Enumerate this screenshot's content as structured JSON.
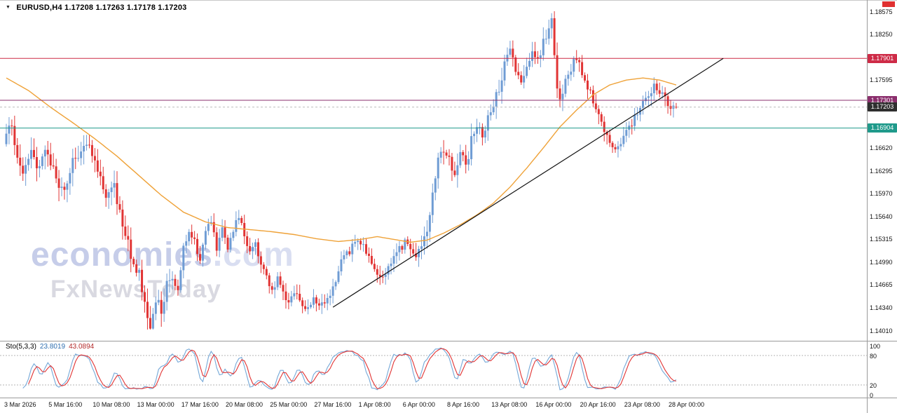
{
  "header": {
    "symbol": "EURUSD,H4",
    "ohlc_text": "1.17208 1.17263 1.17178 1.17203"
  },
  "watermark": {
    "brand": "economies",
    "brand_suffix": ".com",
    "tagline": "FxNewsToday"
  },
  "indicator": {
    "name": "Sto(5,3,3)",
    "value_main": "23.8019",
    "value_signal": "43.0894",
    "axis": [
      {
        "label": "100",
        "value": 100
      },
      {
        "label": "80",
        "value": 80
      },
      {
        "label": "20",
        "value": 20
      },
      {
        "label": "0",
        "value": 0
      }
    ]
  },
  "price_axis": {
    "ticks": [
      {
        "label": "1.18575",
        "price": 1.18575
      },
      {
        "label": "1.18250",
        "price": 1.1825
      },
      {
        "label": "1.17595",
        "price": 1.17595
      },
      {
        "label": "1.16620",
        "price": 1.1662
      },
      {
        "label": "1.16295",
        "price": 1.16295
      },
      {
        "label": "1.15970",
        "price": 1.1597
      },
      {
        "label": "1.15640",
        "price": 1.1564
      },
      {
        "label": "1.15315",
        "price": 1.15315
      },
      {
        "label": "1.14990",
        "price": 1.1499
      },
      {
        "label": "1.14665",
        "price": 1.14665
      },
      {
        "label": "1.14340",
        "price": 1.1434
      },
      {
        "label": "1.14010",
        "price": 1.1401
      }
    ],
    "tags": [
      {
        "name": "resistance",
        "label": "1.17901",
        "price": 1.17901,
        "color": "#ce2b47"
      },
      {
        "name": "pivot",
        "label": "1.17301",
        "price": 1.17301,
        "color": "#8b2f6d"
      },
      {
        "name": "current-price",
        "label": "1.17203",
        "price": 1.17203,
        "color": "#2f2f2f"
      },
      {
        "name": "support",
        "label": "1.16904",
        "price": 1.16904,
        "color": "#1f9a8b"
      }
    ]
  },
  "time_axis": {
    "labels": [
      "3 Mar 2026",
      "5 Mar 16:00",
      "10 Mar 08:00",
      "13 Mar 00:00",
      "17 Mar 16:00",
      "20 Mar 08:00",
      "25 Mar 00:00",
      "27 Mar 16:00",
      "1 Apr 08:00",
      "6 Apr 00:00",
      "8 Apr 16:00",
      "13 Apr 08:00",
      "16 Apr 00:00",
      "20 Apr 16:00",
      "23 Apr 08:00",
      "28 Apr 00:00"
    ]
  },
  "chart_data": {
    "type": "candlestick",
    "symbol": "EURUSD",
    "timeframe": "H4",
    "current_bar_ohlc": {
      "open": 1.17208,
      "high": 1.17263,
      "low": 1.17178,
      "close": 1.17203
    },
    "ylim": [
      1.1401,
      1.18575
    ],
    "visible_high": 1.18575,
    "visible_low": 1.1402,
    "bars_total": 243,
    "bars_per_time_label": 16,
    "bull_color": "#6f9cd4",
    "bear_color": "#e13434",
    "moving_average_color": "#efa238",
    "close_path_waypoints": [
      [
        0,
        1.1688
      ],
      [
        2,
        1.1702
      ],
      [
        4,
        1.164
      ],
      [
        6,
        1.1622
      ],
      [
        9,
        1.1652
      ],
      [
        12,
        1.1628
      ],
      [
        14,
        1.1655
      ],
      [
        16,
        1.1645
      ],
      [
        18,
        1.1612
      ],
      [
        20,
        1.1598
      ],
      [
        23,
        1.1632
      ],
      [
        26,
        1.1654
      ],
      [
        29,
        1.1668
      ],
      [
        32,
        1.1652
      ],
      [
        34,
        1.162
      ],
      [
        36,
        1.1585
      ],
      [
        39,
        1.1612
      ],
      [
        42,
        1.1548
      ],
      [
        45,
        1.1512
      ],
      [
        48,
        1.1478
      ],
      [
        50,
        1.1442
      ],
      [
        52,
        1.1412
      ],
      [
        54,
        1.1448
      ],
      [
        56,
        1.1425
      ],
      [
        58,
        1.1462
      ],
      [
        60,
        1.1478
      ],
      [
        62,
        1.1455
      ],
      [
        64,
        1.1518
      ],
      [
        66,
        1.1548
      ],
      [
        68,
        1.153
      ],
      [
        70,
        1.1498
      ],
      [
        72,
        1.154
      ],
      [
        74,
        1.1555
      ],
      [
        76,
        1.152
      ],
      [
        78,
        1.1545
      ],
      [
        80,
        1.1522
      ],
      [
        82,
        1.1548
      ],
      [
        84,
        1.1558
      ],
      [
        86,
        1.154
      ],
      [
        88,
        1.1512
      ],
      [
        90,
        1.1528
      ],
      [
        92,
        1.1495
      ],
      [
        94,
        1.1475
      ],
      [
        96,
        1.1458
      ],
      [
        98,
        1.1475
      ],
      [
        100,
        1.145
      ],
      [
        102,
        1.1435
      ],
      [
        104,
        1.1455
      ],
      [
        106,
        1.1442
      ],
      [
        108,
        1.1428
      ],
      [
        110,
        1.144
      ],
      [
        112,
        1.1444
      ],
      [
        114,
        1.1436
      ],
      [
        116,
        1.1448
      ],
      [
        118,
        1.1462
      ],
      [
        120,
        1.1488
      ],
      [
        122,
        1.1505
      ],
      [
        124,
        1.1512
      ],
      [
        126,
        1.1525
      ],
      [
        128,
        1.1528
      ],
      [
        130,
        1.1515
      ],
      [
        132,
        1.1498
      ],
      [
        134,
        1.1482
      ],
      [
        136,
        1.1475
      ],
      [
        138,
        1.1492
      ],
      [
        140,
        1.1502
      ],
      [
        142,
        1.1515
      ],
      [
        144,
        1.1528
      ],
      [
        146,
        1.1512
      ],
      [
        148,
        1.1502
      ],
      [
        150,
        1.1522
      ],
      [
        152,
        1.1545
      ],
      [
        154,
        1.1602
      ],
      [
        156,
        1.1648
      ],
      [
        158,
        1.1662
      ],
      [
        160,
        1.1648
      ],
      [
        162,
        1.1628
      ],
      [
        164,
        1.1652
      ],
      [
        166,
        1.1635
      ],
      [
        168,
        1.167
      ],
      [
        170,
        1.1692
      ],
      [
        172,
        1.1678
      ],
      [
        174,
        1.1705
      ],
      [
        176,
        1.1722
      ],
      [
        178,
        1.1748
      ],
      [
        180,
        1.178
      ],
      [
        182,
        1.1795
      ],
      [
        184,
        1.1772
      ],
      [
        186,
        1.176
      ],
      [
        188,
        1.1785
      ],
      [
        190,
        1.1798
      ],
      [
        192,
        1.1792
      ],
      [
        194,
        1.181
      ],
      [
        196,
        1.1832
      ],
      [
        197,
        1.1852
      ],
      [
        198,
        1.179
      ],
      [
        199,
        1.1748
      ],
      [
        200,
        1.1732
      ],
      [
        202,
        1.176
      ],
      [
        204,
        1.1778
      ],
      [
        206,
        1.1788
      ],
      [
        208,
        1.1772
      ],
      [
        210,
        1.1752
      ],
      [
        212,
        1.1728
      ],
      [
        214,
        1.1708
      ],
      [
        216,
        1.1688
      ],
      [
        218,
        1.1672
      ],
      [
        220,
        1.1662
      ],
      [
        222,
        1.1668
      ],
      [
        224,
        1.1682
      ],
      [
        226,
        1.17
      ],
      [
        228,
        1.1712
      ],
      [
        230,
        1.1722
      ],
      [
        232,
        1.1738
      ],
      [
        234,
        1.1748
      ],
      [
        236,
        1.1742
      ],
      [
        238,
        1.173
      ],
      [
        240,
        1.1722
      ],
      [
        242,
        1.17203
      ]
    ],
    "ma_waypoints": [
      [
        0,
        1.1762
      ],
      [
        8,
        1.1744
      ],
      [
        16,
        1.172
      ],
      [
        24,
        1.1698
      ],
      [
        32,
        1.1675
      ],
      [
        40,
        1.165
      ],
      [
        48,
        1.1622
      ],
      [
        56,
        1.1594
      ],
      [
        64,
        1.157
      ],
      [
        72,
        1.1556
      ],
      [
        80,
        1.1548
      ],
      [
        88,
        1.1545
      ],
      [
        96,
        1.1542
      ],
      [
        104,
        1.1538
      ],
      [
        112,
        1.1532
      ],
      [
        120,
        1.1528
      ],
      [
        128,
        1.1531
      ],
      [
        134,
        1.1535
      ],
      [
        140,
        1.1531
      ],
      [
        146,
        1.1527
      ],
      [
        152,
        1.153
      ],
      [
        158,
        1.154
      ],
      [
        164,
        1.1552
      ],
      [
        170,
        1.1566
      ],
      [
        176,
        1.1583
      ],
      [
        182,
        1.1606
      ],
      [
        188,
        1.1633
      ],
      [
        194,
        1.1662
      ],
      [
        200,
        1.1692
      ],
      [
        206,
        1.1716
      ],
      [
        212,
        1.1738
      ],
      [
        218,
        1.1752
      ],
      [
        224,
        1.1759
      ],
      [
        230,
        1.1762
      ],
      [
        236,
        1.1759
      ],
      [
        242,
        1.1752
      ]
    ],
    "trendline": {
      "from_bar": 118,
      "from_price": 1.1434,
      "to_bar": 259,
      "to_price": 1.179,
      "color": "#111111"
    },
    "horizontal_lines": [
      {
        "price": 1.17901,
        "color": "#ce2b47",
        "role": "resistance"
      },
      {
        "price": 1.17301,
        "color": "#8b2f6d",
        "role": "pivot"
      },
      {
        "price": 1.16904,
        "color": "#1f9a8b",
        "role": "support"
      }
    ],
    "current_price_line": {
      "price": 1.17203,
      "color": "#bbbbbb"
    },
    "stochastic": {
      "settings": "Sto(5,3,3)",
      "k_period": 5,
      "slowing": 3,
      "d_period": 3,
      "value_main": 23.8019,
      "value_signal": 43.0894,
      "levels": [
        80,
        20
      ],
      "range": [
        0,
        100
      ],
      "main_color": "#74a8d8",
      "signal_color": "#e13434"
    }
  }
}
